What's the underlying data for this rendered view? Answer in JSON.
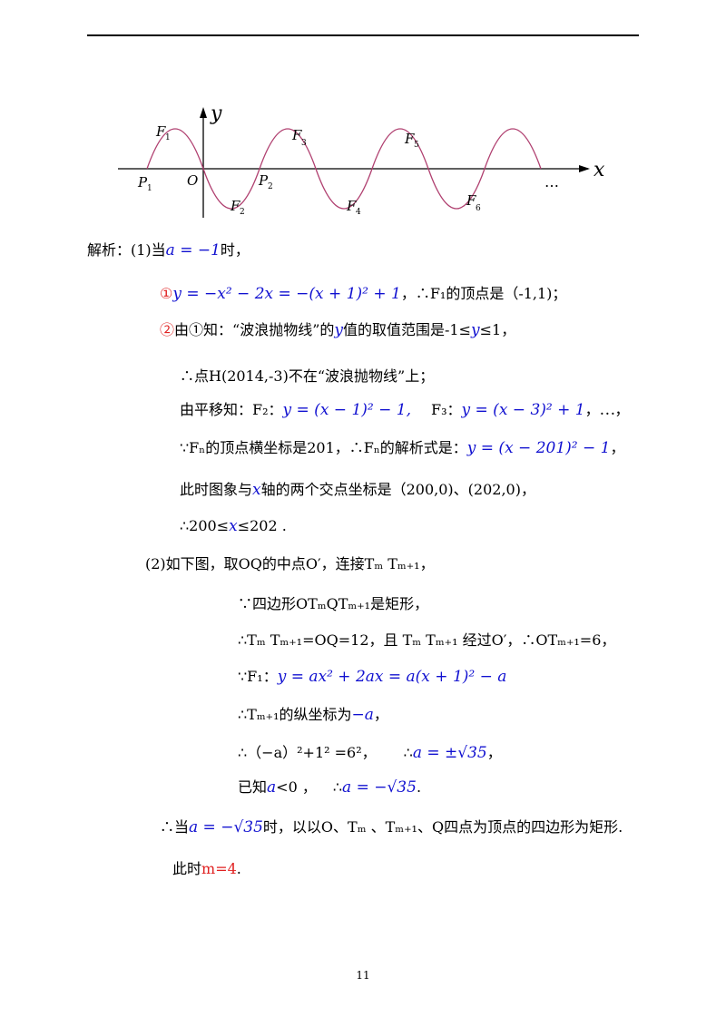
{
  "figure": {
    "labels": {
      "y": "y",
      "x": "x",
      "origin": "O",
      "dots": "…",
      "F1": "F",
      "F1s": "1",
      "F2": "F",
      "F2s": "2",
      "F3": "F",
      "F3s": "3",
      "F4": "F",
      "F4s": "4",
      "F5": "F",
      "F5s": "5",
      "F6": "F",
      "F6s": "6",
      "P1": "P",
      "P1s": "1",
      "P2": "P",
      "P2s": "2"
    }
  },
  "text": {
    "l1a": "解析：(1)当",
    "l1m": "a = −1",
    "l1b": "时，",
    "l2c": "①",
    "l2m": "y = −x² − 2x = −(x + 1)² + 1",
    "l2b": "，∴F₁的顶点是（-1,1)；",
    "l3c": "②",
    "l3a": "由①知：“波浪抛物线”的",
    "l3m": "y",
    "l3b": "值的取值范围是-1≤",
    "l3m2": "y",
    "l3c2": "≤1，",
    "l4": "∴点H(2014,-3)不在“波浪抛物线”上；",
    "l5a": "由平移知：F₂：",
    "l5m": "y = (x − 1)² − 1,",
    "l5b": "F₃：",
    "l5m2": "y = (x − 3)² + 1",
    "l5c": "，⋯，",
    "l6a": "∵Fₙ的顶点横坐标是201，∴Fₙ的解析式是：",
    "l6m": "y = (x − 201)² − 1",
    "l6b": "，",
    "l7a": "此时图象与",
    "l7m": "x",
    "l7b": "轴的两个交点坐标是（200,0)、(202,0)，",
    "l8a": "∴200≤",
    "l8m": "x",
    "l8b": "≤202 .",
    "l9": "(2)如下图，取OQ的中点O′，连接Tₘ Tₘ₊₁，",
    "l10": "∵四边形OTₘQTₘ₊₁是矩形，",
    "l11": "∴Tₘ Tₘ₊₁=OQ=12，且 Tₘ Tₘ₊₁ 经过O′，∴OTₘ₊₁=6，",
    "l12a": "∵F₁：",
    "l12m": "y = ax² + 2ax = a(x + 1)² − a",
    "l13a": "∴Tₘ₊₁的纵坐标为",
    "l13m": "−a",
    "l13b": "，",
    "l14a": "∴（−a）²+1² =6²，",
    "l14b": "∴",
    "l14m": "a = ±√35",
    "l14c": "，",
    "l15a": "已知",
    "l15m": "a",
    "l15b": "<0 ，",
    "l15c": "∴",
    "l15m2": "a = −√35",
    "l15d": ".",
    "l16a": "∴当",
    "l16m": "a = −√35",
    "l16b": "时，以以O、Tₘ 、Tₘ₊₁、Q四点为顶点的四边形为矩形.",
    "l17a": "此时",
    "l17b": "m=4",
    "l17c": "."
  },
  "page_number": "11"
}
